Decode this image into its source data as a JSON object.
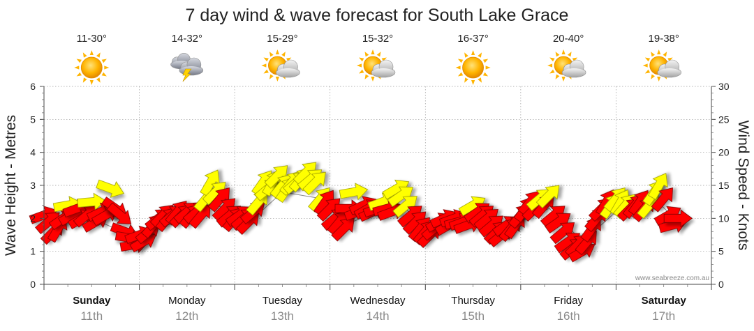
{
  "chart_data": {
    "type": "line",
    "title": "7 day wind & wave forecast for South Lake Grace",
    "ylabel_left": "Wave Height - Metres",
    "ylabel_right": "Wind Speed - Knots",
    "ylim_left": [
      0,
      6
    ],
    "ylim_right": [
      0,
      30
    ],
    "yticks_left": [
      "0",
      "1",
      "2",
      "3",
      "4",
      "5",
      "6"
    ],
    "yticks_right": [
      "0",
      "5",
      "10",
      "15",
      "20",
      "25",
      "30"
    ],
    "grid": true,
    "watermark": "www.seabreeze.com.au",
    "days": [
      {
        "day": "Sunday",
        "date": "11th",
        "temp": "11-30°",
        "icon": "sun-icon",
        "bold": true
      },
      {
        "day": "Monday",
        "date": "12th",
        "temp": "14-32°",
        "icon": "storm-icon",
        "bold": false
      },
      {
        "day": "Tuesday",
        "date": "13th",
        "temp": "15-29°",
        "icon": "partly-cloudy-icon",
        "bold": false
      },
      {
        "day": "Wednesday",
        "date": "14th",
        "temp": "15-32°",
        "icon": "partly-cloudy-icon",
        "bold": false
      },
      {
        "day": "Thursday",
        "date": "15th",
        "temp": "16-37°",
        "icon": "sun-icon",
        "bold": false
      },
      {
        "day": "Friday",
        "date": "16th",
        "temp": "20-40°",
        "icon": "partly-cloudy-icon",
        "bold": false
      },
      {
        "day": "Saturday",
        "date": "17th",
        "temp": "19-38°",
        "icon": "partly-cloudy-icon",
        "bold": true
      }
    ],
    "series": [
      {
        "name": "Wind Speed - Knots",
        "points": [
          {
            "t": 0.0,
            "v": 10.5,
            "dir": 160,
            "gust": false
          },
          {
            "t": 0.05,
            "v": 9.5,
            "dir": 140,
            "gust": false
          },
          {
            "t": 0.1,
            "v": 8.0,
            "dir": 135,
            "gust": false
          },
          {
            "t": 0.15,
            "v": 8.5,
            "dir": 120,
            "gust": false
          },
          {
            "t": 0.2,
            "v": 10.0,
            "dir": 145,
            "gust": false
          },
          {
            "t": 0.25,
            "v": 12.0,
            "dir": 170,
            "gust": true
          },
          {
            "t": 0.3,
            "v": 10.5,
            "dir": 150,
            "gust": false
          },
          {
            "t": 0.35,
            "v": 11.5,
            "dir": 160,
            "gust": false
          },
          {
            "t": 0.4,
            "v": 10.0,
            "dir": 150,
            "gust": false
          },
          {
            "t": 0.45,
            "v": 10.5,
            "dir": 140,
            "gust": false
          },
          {
            "t": 0.5,
            "v": 12.5,
            "dir": 175,
            "gust": true
          },
          {
            "t": 0.55,
            "v": 9.5,
            "dir": 150,
            "gust": false
          },
          {
            "t": 0.6,
            "v": 11.0,
            "dir": 155,
            "gust": false
          },
          {
            "t": 0.65,
            "v": 10.5,
            "dir": 150,
            "gust": false
          },
          {
            "t": 0.7,
            "v": 14.5,
            "dir": 200,
            "gust": true
          },
          {
            "t": 0.75,
            "v": 11.5,
            "dir": 215,
            "gust": false
          },
          {
            "t": 0.8,
            "v": 10.5,
            "dir": 220,
            "gust": false
          },
          {
            "t": 0.85,
            "v": 8.0,
            "dir": 200,
            "gust": false
          },
          {
            "t": 0.9,
            "v": 7.0,
            "dir": 190,
            "gust": false
          },
          {
            "t": 0.95,
            "v": 6.0,
            "dir": 170,
            "gust": false
          },
          {
            "t": 1.0,
            "v": 7.5,
            "dir": 160,
            "gust": false
          },
          {
            "t": 1.05,
            "v": 6.5,
            "dir": 150,
            "gust": false
          },
          {
            "t": 1.1,
            "v": 8.0,
            "dir": 140,
            "gust": false
          },
          {
            "t": 1.15,
            "v": 9.0,
            "dir": 130,
            "gust": false
          },
          {
            "t": 1.2,
            "v": 10.0,
            "dir": 140,
            "gust": false
          },
          {
            "t": 1.25,
            "v": 10.5,
            "dir": 135,
            "gust": false
          },
          {
            "t": 1.3,
            "v": 10.0,
            "dir": 130,
            "gust": false
          },
          {
            "t": 1.35,
            "v": 10.5,
            "dir": 140,
            "gust": false
          },
          {
            "t": 1.4,
            "v": 11.0,
            "dir": 130,
            "gust": false
          },
          {
            "t": 1.45,
            "v": 10.5,
            "dir": 135,
            "gust": false
          },
          {
            "t": 1.5,
            "v": 11.0,
            "dir": 140,
            "gust": false
          },
          {
            "t": 1.55,
            "v": 10.5,
            "dir": 130,
            "gust": false
          },
          {
            "t": 1.6,
            "v": 11.0,
            "dir": 140,
            "gust": false
          },
          {
            "t": 1.65,
            "v": 10.5,
            "dir": 130,
            "gust": false
          },
          {
            "t": 1.7,
            "v": 13.0,
            "dir": 130,
            "gust": true
          },
          {
            "t": 1.75,
            "v": 15.5,
            "dir": 120,
            "gust": true
          },
          {
            "t": 1.8,
            "v": 14.0,
            "dir": 135,
            "gust": true
          },
          {
            "t": 1.85,
            "v": 13.0,
            "dir": 130,
            "gust": false
          },
          {
            "t": 1.9,
            "v": 11.5,
            "dir": 135,
            "gust": false
          },
          {
            "t": 1.95,
            "v": 10.5,
            "dir": 140,
            "gust": false
          },
          {
            "t": 2.0,
            "v": 10.0,
            "dir": 130,
            "gust": false
          },
          {
            "t": 2.05,
            "v": 10.5,
            "dir": 145,
            "gust": false
          },
          {
            "t": 2.1,
            "v": 10.0,
            "dir": 140,
            "gust": false
          },
          {
            "t": 2.15,
            "v": 9.5,
            "dir": 135,
            "gust": false
          },
          {
            "t": 2.2,
            "v": 11.0,
            "dir": 140,
            "gust": false
          },
          {
            "t": 2.25,
            "v": 12.5,
            "dir": 130,
            "gust": true
          },
          {
            "t": 2.3,
            "v": 15.5,
            "dir": 125,
            "gust": true
          },
          {
            "t": 2.35,
            "v": 14.5,
            "dir": 140,
            "gust": true
          },
          {
            "t": 2.4,
            "v": 15.5,
            "dir": 120,
            "gust": true
          },
          {
            "t": 2.45,
            "v": 16.5,
            "dir": 135,
            "gust": true
          },
          {
            "t": 2.5,
            "v": 15.0,
            "dir": 130,
            "gust": true
          },
          {
            "t": 2.55,
            "v": 14.5,
            "dir": 125,
            "gust": true
          },
          {
            "t": 2.6,
            "v": 15.5,
            "dir": 130,
            "gust": true
          },
          {
            "t": 2.65,
            "v": 15.5,
            "dir": 140,
            "gust": true
          },
          {
            "t": 2.7,
            "v": 16.0,
            "dir": 130,
            "gust": true
          },
          {
            "t": 2.75,
            "v": 17.0,
            "dir": 135,
            "gust": true
          },
          {
            "t": 2.8,
            "v": 16.0,
            "dir": 140,
            "gust": true
          },
          {
            "t": 2.85,
            "v": 15.5,
            "dir": 135,
            "gust": true
          },
          {
            "t": 2.9,
            "v": 13.0,
            "dir": 130,
            "gust": true
          },
          {
            "t": 2.95,
            "v": 12.5,
            "dir": 125,
            "gust": false
          },
          {
            "t": 3.0,
            "v": 11.5,
            "dir": 135,
            "gust": false
          },
          {
            "t": 3.05,
            "v": 10.0,
            "dir": 140,
            "gust": false
          },
          {
            "t": 3.1,
            "v": 9.5,
            "dir": 130,
            "gust": false
          },
          {
            "t": 3.15,
            "v": 8.5,
            "dir": 135,
            "gust": false
          },
          {
            "t": 3.2,
            "v": 11.5,
            "dir": 180,
            "gust": false
          },
          {
            "t": 3.25,
            "v": 14.0,
            "dir": 170,
            "gust": true
          },
          {
            "t": 3.3,
            "v": 11.0,
            "dir": 160,
            "gust": false
          },
          {
            "t": 3.35,
            "v": 12.0,
            "dir": 155,
            "gust": false
          },
          {
            "t": 3.4,
            "v": 11.5,
            "dir": 150,
            "gust": false
          },
          {
            "t": 3.45,
            "v": 11.0,
            "dir": 155,
            "gust": false
          },
          {
            "t": 3.5,
            "v": 11.5,
            "dir": 160,
            "gust": false
          },
          {
            "t": 3.55,
            "v": 12.5,
            "dir": 160,
            "gust": true
          },
          {
            "t": 3.6,
            "v": 11.5,
            "dir": 165,
            "gust": false
          },
          {
            "t": 3.65,
            "v": 11.0,
            "dir": 160,
            "gust": false
          },
          {
            "t": 3.7,
            "v": 14.5,
            "dir": 150,
            "gust": true
          },
          {
            "t": 3.75,
            "v": 13.5,
            "dir": 145,
            "gust": true
          },
          {
            "t": 3.8,
            "v": 12.0,
            "dir": 140,
            "gust": true
          },
          {
            "t": 3.85,
            "v": 10.5,
            "dir": 140,
            "gust": false
          },
          {
            "t": 3.9,
            "v": 9.5,
            "dir": 135,
            "gust": false
          },
          {
            "t": 3.95,
            "v": 8.5,
            "dir": 130,
            "gust": false
          },
          {
            "t": 4.0,
            "v": 8.0,
            "dir": 130,
            "gust": false
          },
          {
            "t": 4.05,
            "v": 7.5,
            "dir": 135,
            "gust": false
          },
          {
            "t": 4.1,
            "v": 8.5,
            "dir": 140,
            "gust": false
          },
          {
            "t": 4.15,
            "v": 9.5,
            "dir": 150,
            "gust": false
          },
          {
            "t": 4.2,
            "v": 10.0,
            "dir": 155,
            "gust": false
          },
          {
            "t": 4.25,
            "v": 9.0,
            "dir": 150,
            "gust": false
          },
          {
            "t": 4.3,
            "v": 10.0,
            "dir": 160,
            "gust": false
          },
          {
            "t": 4.35,
            "v": 9.5,
            "dir": 165,
            "gust": false
          },
          {
            "t": 4.4,
            "v": 9.5,
            "dir": 160,
            "gust": false
          },
          {
            "t": 4.45,
            "v": 9.0,
            "dir": 160,
            "gust": false
          },
          {
            "t": 4.5,
            "v": 12.0,
            "dir": 150,
            "gust": true
          },
          {
            "t": 4.55,
            "v": 11.0,
            "dir": 145,
            "gust": false
          },
          {
            "t": 4.6,
            "v": 10.5,
            "dir": 140,
            "gust": false
          },
          {
            "t": 4.65,
            "v": 10.0,
            "dir": 140,
            "gust": false
          },
          {
            "t": 4.7,
            "v": 9.0,
            "dir": 140,
            "gust": false
          },
          {
            "t": 4.75,
            "v": 8.0,
            "dir": 135,
            "gust": false
          },
          {
            "t": 4.8,
            "v": 7.5,
            "dir": 140,
            "gust": false
          },
          {
            "t": 4.85,
            "v": 9.0,
            "dir": 145,
            "gust": false
          },
          {
            "t": 4.9,
            "v": 8.5,
            "dir": 130,
            "gust": false
          },
          {
            "t": 4.95,
            "v": 9.0,
            "dir": 125,
            "gust": false
          },
          {
            "t": 5.0,
            "v": 10.5,
            "dir": 130,
            "gust": false
          },
          {
            "t": 5.05,
            "v": 11.5,
            "dir": 125,
            "gust": false
          },
          {
            "t": 5.1,
            "v": 12.5,
            "dir": 130,
            "gust": false
          },
          {
            "t": 5.15,
            "v": 11.5,
            "dir": 135,
            "gust": false
          },
          {
            "t": 5.2,
            "v": 13.0,
            "dir": 140,
            "gust": true
          },
          {
            "t": 5.25,
            "v": 12.0,
            "dir": 130,
            "gust": false
          },
          {
            "t": 5.3,
            "v": 13.5,
            "dir": 135,
            "gust": true
          },
          {
            "t": 5.35,
            "v": 10.5,
            "dir": 140,
            "gust": false
          },
          {
            "t": 5.4,
            "v": 9.5,
            "dir": 145,
            "gust": false
          },
          {
            "t": 5.45,
            "v": 8.0,
            "dir": 140,
            "gust": false
          },
          {
            "t": 5.5,
            "v": 6.5,
            "dir": 145,
            "gust": false
          },
          {
            "t": 5.55,
            "v": 5.5,
            "dir": 140,
            "gust": false
          },
          {
            "t": 5.6,
            "v": 6.0,
            "dir": 135,
            "gust": false
          },
          {
            "t": 5.65,
            "v": 5.0,
            "dir": 150,
            "gust": false
          },
          {
            "t": 5.7,
            "v": 6.5,
            "dir": 130,
            "gust": false
          },
          {
            "t": 5.75,
            "v": 8.5,
            "dir": 125,
            "gust": false
          },
          {
            "t": 5.8,
            "v": 10.0,
            "dir": 130,
            "gust": false
          },
          {
            "t": 5.85,
            "v": 11.5,
            "dir": 135,
            "gust": false
          },
          {
            "t": 5.9,
            "v": 12.5,
            "dir": 120,
            "gust": false
          },
          {
            "t": 5.95,
            "v": 12.0,
            "dir": 125,
            "gust": true
          },
          {
            "t": 6.0,
            "v": 13.0,
            "dir": 130,
            "gust": true
          },
          {
            "t": 6.05,
            "v": 12.5,
            "dir": 120,
            "gust": true
          },
          {
            "t": 6.1,
            "v": 12.0,
            "dir": 130,
            "gust": true
          },
          {
            "t": 6.15,
            "v": 11.5,
            "dir": 135,
            "gust": false
          },
          {
            "t": 6.2,
            "v": 12.0,
            "dir": 130,
            "gust": false
          },
          {
            "t": 6.25,
            "v": 12.5,
            "dir": 125,
            "gust": false
          },
          {
            "t": 6.3,
            "v": 11.5,
            "dir": 130,
            "gust": false
          },
          {
            "t": 6.35,
            "v": 12.0,
            "dir": 130,
            "gust": true
          },
          {
            "t": 6.4,
            "v": 14.0,
            "dir": 125,
            "gust": true
          },
          {
            "t": 6.45,
            "v": 15.0,
            "dir": 120,
            "gust": true
          },
          {
            "t": 6.5,
            "v": 13.0,
            "dir": 130,
            "gust": false
          },
          {
            "t": 6.55,
            "v": 10.5,
            "dir": 150,
            "gust": false
          },
          {
            "t": 6.6,
            "v": 9.0,
            "dir": 165,
            "gust": false
          },
          {
            "t": 6.65,
            "v": 10.0,
            "dir": 180,
            "gust": false
          }
        ]
      },
      {
        "name": "Wave Height - Metres",
        "points": [
          {
            "t": 0.0,
            "v": 2.0
          },
          {
            "t": 0.5,
            "v": 2.0
          },
          {
            "t": 0.9,
            "v": 1.5
          },
          {
            "t": 1.1,
            "v": 1.6
          },
          {
            "t": 1.5,
            "v": 2.0
          },
          {
            "t": 1.8,
            "v": 2.4
          },
          {
            "t": 2.2,
            "v": 2.0
          },
          {
            "t": 2.5,
            "v": 2.8
          },
          {
            "t": 2.9,
            "v": 2.6
          },
          {
            "t": 3.15,
            "v": 1.8
          },
          {
            "t": 3.5,
            "v": 2.2
          },
          {
            "t": 3.75,
            "v": 2.4
          },
          {
            "t": 4.05,
            "v": 1.6
          },
          {
            "t": 4.5,
            "v": 2.0
          },
          {
            "t": 4.85,
            "v": 1.7
          },
          {
            "t": 5.3,
            "v": 2.3
          },
          {
            "t": 5.65,
            "v": 1.3
          },
          {
            "t": 6.0,
            "v": 2.2
          },
          {
            "t": 6.4,
            "v": 2.6
          },
          {
            "t": 6.65,
            "v": 1.9
          }
        ]
      }
    ]
  }
}
